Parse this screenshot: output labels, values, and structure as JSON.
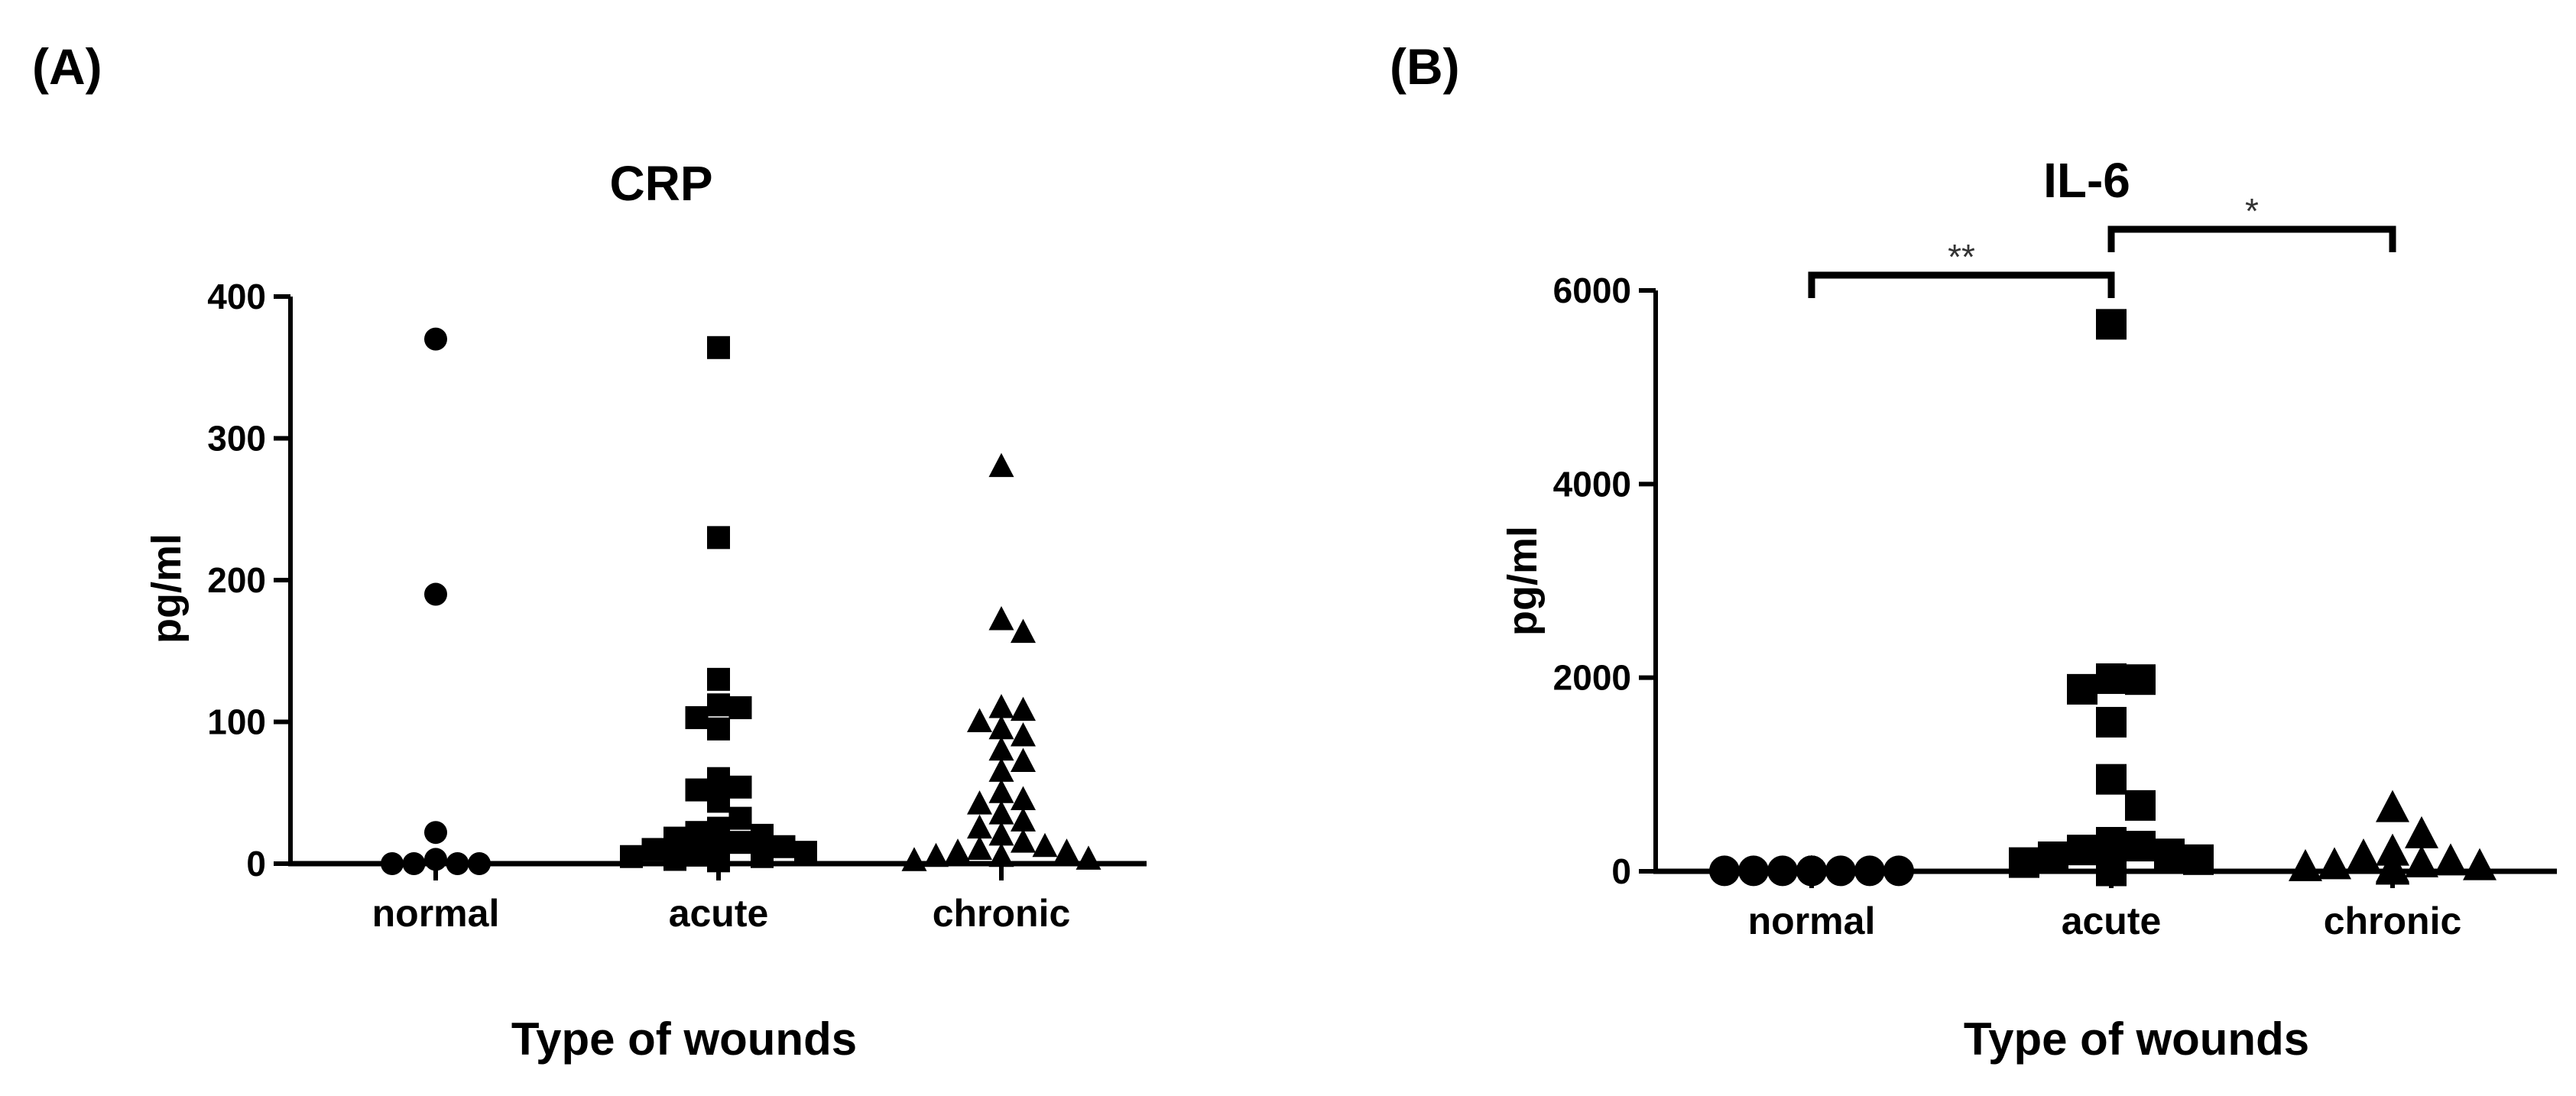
{
  "figure": {
    "panels": [
      {
        "id": "A",
        "label": "(A)"
      },
      {
        "id": "B",
        "label": "(B)"
      }
    ]
  },
  "chart_data": [
    {
      "type": "scatter",
      "panel": "(A)",
      "title": "CRP",
      "xlabel": "Type of wounds",
      "ylabel": "pg/ml",
      "ylim": [
        0,
        400
      ],
      "yticks": [
        0,
        100,
        200,
        300,
        400
      ],
      "categories": [
        "normal",
        "acute",
        "chronic"
      ],
      "grid": false,
      "series": [
        {
          "category": "normal",
          "marker": "circle",
          "color": "#000000",
          "values": [
            370,
            190,
            22,
            3,
            0,
            0,
            0,
            0
          ]
        },
        {
          "category": "acute",
          "marker": "square",
          "color": "#000000",
          "values": [
            364,
            230,
            130,
            112,
            103,
            95,
            110,
            60,
            54,
            52,
            44,
            32,
            25,
            22,
            20,
            18,
            15,
            12,
            10,
            10,
            8,
            6,
            5,
            5,
            3,
            2
          ]
        },
        {
          "category": "chronic",
          "marker": "triangle",
          "color": "#000000",
          "values": [
            280,
            172,
            163,
            110,
            108,
            100,
            95,
            90,
            80,
            72,
            65,
            50,
            45,
            42,
            35,
            30,
            25,
            20,
            15,
            12,
            10,
            8,
            8,
            5,
            5,
            3,
            2
          ]
        }
      ]
    },
    {
      "type": "scatter",
      "panel": "(B)",
      "title": "IL-6",
      "xlabel": "Type of wounds",
      "ylabel": "pg/ml",
      "ylim": [
        0,
        6000
      ],
      "yticks": [
        0,
        2000,
        4000,
        6000
      ],
      "categories": [
        "normal",
        "acute",
        "chronic"
      ],
      "grid": false,
      "series": [
        {
          "category": "normal",
          "marker": "circle",
          "color": "#000000",
          "values": [
            5,
            5,
            5,
            5,
            5,
            5,
            5,
            5,
            5,
            5,
            5,
            5
          ]
        },
        {
          "category": "acute",
          "marker": "square",
          "color": "#000000",
          "values": [
            5650,
            1990,
            1980,
            1880,
            1540,
            950,
            680,
            300,
            260,
            220,
            180,
            150,
            120,
            90,
            60,
            40,
            20,
            10,
            5,
            5
          ]
        },
        {
          "category": "chronic",
          "marker": "triangle",
          "color": "#000000",
          "values": [
            650,
            380,
            200,
            150,
            100,
            80,
            60,
            50,
            40,
            30,
            20,
            10,
            5,
            5
          ]
        }
      ],
      "significance": [
        {
          "from": "normal",
          "to": "acute",
          "label": "**"
        },
        {
          "from": "acute",
          "to": "chronic",
          "label": "*"
        }
      ]
    }
  ]
}
